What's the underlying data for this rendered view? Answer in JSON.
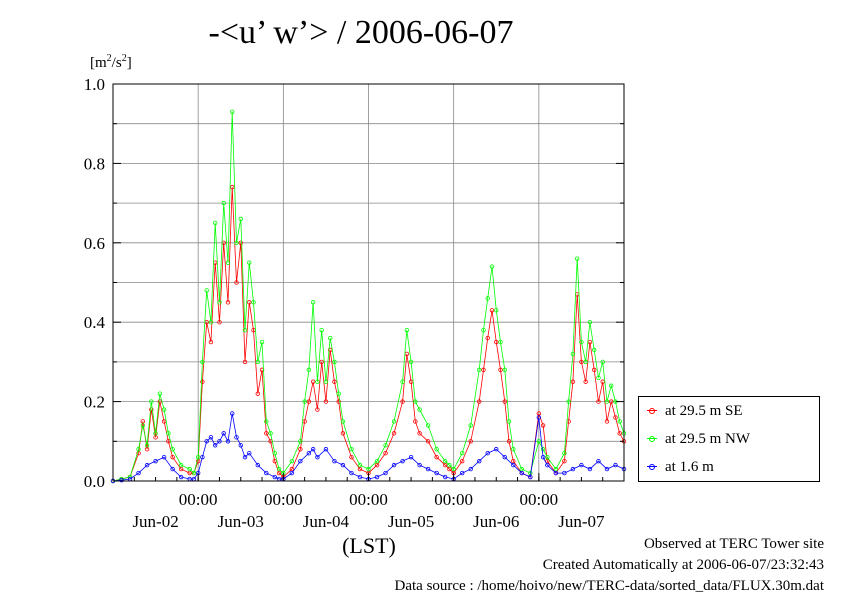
{
  "title": "-<u’ w’> / 2006-06-07",
  "units_label": "[m",
  "units_sup": "2",
  "units_mid": "/s",
  "units_sup2": "2",
  "units_end": "]",
  "xlabel": "(LST)",
  "footer": {
    "line1": "Observed at TERC Tower site",
    "line2": "Created Automatically at 2006-06-07/23:32:43",
    "line3": "Data source : /home/hoivo/new/TERC-data/sorted_data/FLUX.30m.dat"
  },
  "legend": [
    {
      "label": "at 29.5 m SE",
      "color": "#ff0000"
    },
    {
      "label": "at 29.5 m NW",
      "color": "#00ff00"
    },
    {
      "label": "at 1.6 m",
      "color": "#0000ff"
    }
  ],
  "chart_data": {
    "type": "line",
    "title": "-<u’ w’> / 2006-06-07",
    "xlabel": "(LST)",
    "ylabel": "[m2/s2]",
    "ylim": [
      0,
      1.0
    ],
    "xlim": [
      0,
      6
    ],
    "y_ticks": [
      "0.0",
      "0.2",
      "0.4",
      "0.6",
      "0.8",
      "1.0"
    ],
    "y_tick_values": [
      0,
      0.2,
      0.4,
      0.6,
      0.8,
      1.0
    ],
    "x_ticks": [
      {
        "x": 1,
        "label": "00:00"
      },
      {
        "x": 2,
        "label": "00:00"
      },
      {
        "x": 3,
        "label": "00:00"
      },
      {
        "x": 4,
        "label": "00:00"
      },
      {
        "x": 5,
        "label": "00:00"
      }
    ],
    "day_labels": [
      {
        "x": 0.5,
        "label": "Jun-02"
      },
      {
        "x": 1.5,
        "label": "Jun-03"
      },
      {
        "x": 2.5,
        "label": "Jun-04"
      },
      {
        "x": 3.5,
        "label": "Jun-05"
      },
      {
        "x": 4.5,
        "label": "Jun-06"
      },
      {
        "x": 5.5,
        "label": "Jun-07"
      }
    ],
    "grid": true,
    "legend_position": "right",
    "series": [
      {
        "name": "at 29.5 m SE",
        "color": "#ff0000",
        "points": [
          [
            0.0,
            0.0
          ],
          [
            0.1,
            0.005
          ],
          [
            0.2,
            0.01
          ],
          [
            0.3,
            0.07
          ],
          [
            0.35,
            0.15
          ],
          [
            0.4,
            0.08
          ],
          [
            0.45,
            0.18
          ],
          [
            0.5,
            0.11
          ],
          [
            0.55,
            0.2
          ],
          [
            0.6,
            0.15
          ],
          [
            0.65,
            0.1
          ],
          [
            0.7,
            0.06
          ],
          [
            0.8,
            0.03
          ],
          [
            0.9,
            0.02
          ],
          [
            0.95,
            0.02
          ],
          [
            1.0,
            0.05
          ],
          [
            1.05,
            0.25
          ],
          [
            1.1,
            0.4
          ],
          [
            1.15,
            0.35
          ],
          [
            1.2,
            0.55
          ],
          [
            1.25,
            0.4
          ],
          [
            1.3,
            0.6
          ],
          [
            1.35,
            0.45
          ],
          [
            1.4,
            0.74
          ],
          [
            1.45,
            0.5
          ],
          [
            1.5,
            0.6
          ],
          [
            1.55,
            0.3
          ],
          [
            1.6,
            0.45
          ],
          [
            1.65,
            0.38
          ],
          [
            1.7,
            0.22
          ],
          [
            1.75,
            0.28
          ],
          [
            1.8,
            0.12
          ],
          [
            1.85,
            0.1
          ],
          [
            1.9,
            0.05
          ],
          [
            1.95,
            0.02
          ],
          [
            2.0,
            0.01
          ],
          [
            2.1,
            0.03
          ],
          [
            2.2,
            0.08
          ],
          [
            2.25,
            0.15
          ],
          [
            2.3,
            0.2
          ],
          [
            2.35,
            0.25
          ],
          [
            2.4,
            0.18
          ],
          [
            2.45,
            0.3
          ],
          [
            2.5,
            0.2
          ],
          [
            2.55,
            0.33
          ],
          [
            2.6,
            0.25
          ],
          [
            2.65,
            0.2
          ],
          [
            2.7,
            0.12
          ],
          [
            2.8,
            0.06
          ],
          [
            2.9,
            0.03
          ],
          [
            3.0,
            0.02
          ],
          [
            3.1,
            0.04
          ],
          [
            3.2,
            0.07
          ],
          [
            3.3,
            0.12
          ],
          [
            3.4,
            0.2
          ],
          [
            3.45,
            0.32
          ],
          [
            3.5,
            0.25
          ],
          [
            3.55,
            0.15
          ],
          [
            3.6,
            0.12
          ],
          [
            3.7,
            0.1
          ],
          [
            3.8,
            0.06
          ],
          [
            3.9,
            0.04
          ],
          [
            3.95,
            0.03
          ],
          [
            4.0,
            0.02
          ],
          [
            4.1,
            0.05
          ],
          [
            4.2,
            0.1
          ],
          [
            4.3,
            0.2
          ],
          [
            4.35,
            0.28
          ],
          [
            4.4,
            0.36
          ],
          [
            4.45,
            0.43
          ],
          [
            4.5,
            0.35
          ],
          [
            4.55,
            0.28
          ],
          [
            4.6,
            0.2
          ],
          [
            4.65,
            0.1
          ],
          [
            4.7,
            0.05
          ],
          [
            4.8,
            0.02
          ],
          [
            4.9,
            0.01
          ],
          [
            5.0,
            0.17
          ],
          [
            5.05,
            0.14
          ],
          [
            5.1,
            0.05
          ],
          [
            5.2,
            0.02
          ],
          [
            5.3,
            0.05
          ],
          [
            5.35,
            0.15
          ],
          [
            5.4,
            0.25
          ],
          [
            5.45,
            0.47
          ],
          [
            5.5,
            0.3
          ],
          [
            5.55,
            0.25
          ],
          [
            5.6,
            0.35
          ],
          [
            5.65,
            0.28
          ],
          [
            5.7,
            0.2
          ],
          [
            5.75,
            0.25
          ],
          [
            5.8,
            0.15
          ],
          [
            5.85,
            0.2
          ],
          [
            5.9,
            0.16
          ],
          [
            5.95,
            0.12
          ],
          [
            6.0,
            0.1
          ]
        ]
      },
      {
        "name": "at 29.5 m NW",
        "color": "#00ff00",
        "points": [
          [
            0.0,
            0.0
          ],
          [
            0.1,
            0.005
          ],
          [
            0.2,
            0.01
          ],
          [
            0.3,
            0.08
          ],
          [
            0.35,
            0.14
          ],
          [
            0.4,
            0.09
          ],
          [
            0.45,
            0.2
          ],
          [
            0.5,
            0.12
          ],
          [
            0.55,
            0.22
          ],
          [
            0.6,
            0.18
          ],
          [
            0.65,
            0.12
          ],
          [
            0.7,
            0.08
          ],
          [
            0.8,
            0.04
          ],
          [
            0.9,
            0.03
          ],
          [
            0.95,
            0.02
          ],
          [
            1.0,
            0.06
          ],
          [
            1.05,
            0.3
          ],
          [
            1.1,
            0.48
          ],
          [
            1.15,
            0.4
          ],
          [
            1.2,
            0.65
          ],
          [
            1.25,
            0.45
          ],
          [
            1.3,
            0.7
          ],
          [
            1.35,
            0.55
          ],
          [
            1.4,
            0.93
          ],
          [
            1.45,
            0.6
          ],
          [
            1.5,
            0.66
          ],
          [
            1.55,
            0.38
          ],
          [
            1.6,
            0.55
          ],
          [
            1.65,
            0.45
          ],
          [
            1.7,
            0.3
          ],
          [
            1.75,
            0.35
          ],
          [
            1.8,
            0.15
          ],
          [
            1.85,
            0.12
          ],
          [
            1.9,
            0.07
          ],
          [
            1.95,
            0.03
          ],
          [
            2.0,
            0.02
          ],
          [
            2.1,
            0.05
          ],
          [
            2.2,
            0.1
          ],
          [
            2.25,
            0.2
          ],
          [
            2.3,
            0.28
          ],
          [
            2.35,
            0.45
          ],
          [
            2.4,
            0.25
          ],
          [
            2.45,
            0.38
          ],
          [
            2.5,
            0.25
          ],
          [
            2.55,
            0.36
          ],
          [
            2.6,
            0.3
          ],
          [
            2.65,
            0.22
          ],
          [
            2.7,
            0.15
          ],
          [
            2.8,
            0.08
          ],
          [
            2.9,
            0.04
          ],
          [
            3.0,
            0.03
          ],
          [
            3.1,
            0.05
          ],
          [
            3.2,
            0.09
          ],
          [
            3.3,
            0.15
          ],
          [
            3.4,
            0.25
          ],
          [
            3.45,
            0.38
          ],
          [
            3.5,
            0.3
          ],
          [
            3.55,
            0.2
          ],
          [
            3.6,
            0.18
          ],
          [
            3.7,
            0.14
          ],
          [
            3.8,
            0.08
          ],
          [
            3.9,
            0.05
          ],
          [
            3.95,
            0.04
          ],
          [
            4.0,
            0.03
          ],
          [
            4.1,
            0.07
          ],
          [
            4.2,
            0.14
          ],
          [
            4.3,
            0.28
          ],
          [
            4.35,
            0.38
          ],
          [
            4.4,
            0.46
          ],
          [
            4.45,
            0.54
          ],
          [
            4.5,
            0.43
          ],
          [
            4.55,
            0.35
          ],
          [
            4.6,
            0.28
          ],
          [
            4.65,
            0.15
          ],
          [
            4.7,
            0.08
          ],
          [
            4.8,
            0.03
          ],
          [
            4.9,
            0.02
          ],
          [
            5.0,
            0.1
          ],
          [
            5.05,
            0.08
          ],
          [
            5.1,
            0.06
          ],
          [
            5.2,
            0.03
          ],
          [
            5.3,
            0.07
          ],
          [
            5.35,
            0.2
          ],
          [
            5.4,
            0.32
          ],
          [
            5.45,
            0.56
          ],
          [
            5.5,
            0.35
          ],
          [
            5.55,
            0.3
          ],
          [
            5.6,
            0.4
          ],
          [
            5.65,
            0.33
          ],
          [
            5.7,
            0.26
          ],
          [
            5.75,
            0.3
          ],
          [
            5.8,
            0.2
          ],
          [
            5.85,
            0.24
          ],
          [
            5.9,
            0.2
          ],
          [
            5.95,
            0.15
          ],
          [
            6.0,
            0.12
          ]
        ]
      },
      {
        "name": "at 1.6 m",
        "color": "#0000ff",
        "points": [
          [
            0.0,
            0.0
          ],
          [
            0.1,
            0.002
          ],
          [
            0.2,
            0.005
          ],
          [
            0.3,
            0.02
          ],
          [
            0.4,
            0.04
          ],
          [
            0.5,
            0.05
          ],
          [
            0.6,
            0.06
          ],
          [
            0.7,
            0.03
          ],
          [
            0.8,
            0.01
          ],
          [
            0.9,
            0.005
          ],
          [
            0.95,
            0.005
          ],
          [
            1.0,
            0.02
          ],
          [
            1.05,
            0.06
          ],
          [
            1.1,
            0.1
          ],
          [
            1.15,
            0.11
          ],
          [
            1.2,
            0.09
          ],
          [
            1.25,
            0.1
          ],
          [
            1.3,
            0.12
          ],
          [
            1.35,
            0.1
          ],
          [
            1.4,
            0.17
          ],
          [
            1.45,
            0.11
          ],
          [
            1.5,
            0.09
          ],
          [
            1.55,
            0.06
          ],
          [
            1.6,
            0.07
          ],
          [
            1.7,
            0.04
          ],
          [
            1.8,
            0.02
          ],
          [
            1.9,
            0.01
          ],
          [
            1.95,
            0.005
          ],
          [
            2.0,
            0.005
          ],
          [
            2.1,
            0.02
          ],
          [
            2.2,
            0.05
          ],
          [
            2.3,
            0.07
          ],
          [
            2.35,
            0.08
          ],
          [
            2.4,
            0.06
          ],
          [
            2.5,
            0.08
          ],
          [
            2.6,
            0.05
          ],
          [
            2.7,
            0.04
          ],
          [
            2.8,
            0.02
          ],
          [
            2.9,
            0.01
          ],
          [
            3.0,
            0.005
          ],
          [
            3.1,
            0.01
          ],
          [
            3.2,
            0.02
          ],
          [
            3.3,
            0.04
          ],
          [
            3.4,
            0.05
          ],
          [
            3.5,
            0.06
          ],
          [
            3.6,
            0.04
          ],
          [
            3.7,
            0.03
          ],
          [
            3.8,
            0.02
          ],
          [
            3.9,
            0.01
          ],
          [
            4.0,
            0.005
          ],
          [
            4.1,
            0.02
          ],
          [
            4.2,
            0.03
          ],
          [
            4.3,
            0.05
          ],
          [
            4.4,
            0.07
          ],
          [
            4.5,
            0.08
          ],
          [
            4.6,
            0.06
          ],
          [
            4.7,
            0.04
          ],
          [
            4.8,
            0.02
          ],
          [
            4.9,
            0.01
          ],
          [
            5.0,
            0.16
          ],
          [
            5.05,
            0.06
          ],
          [
            5.1,
            0.04
          ],
          [
            5.2,
            0.02
          ],
          [
            5.3,
            0.02
          ],
          [
            5.4,
            0.03
          ],
          [
            5.5,
            0.04
          ],
          [
            5.6,
            0.03
          ],
          [
            5.7,
            0.05
          ],
          [
            5.8,
            0.03
          ],
          [
            5.9,
            0.04
          ],
          [
            6.0,
            0.03
          ]
        ]
      }
    ]
  }
}
